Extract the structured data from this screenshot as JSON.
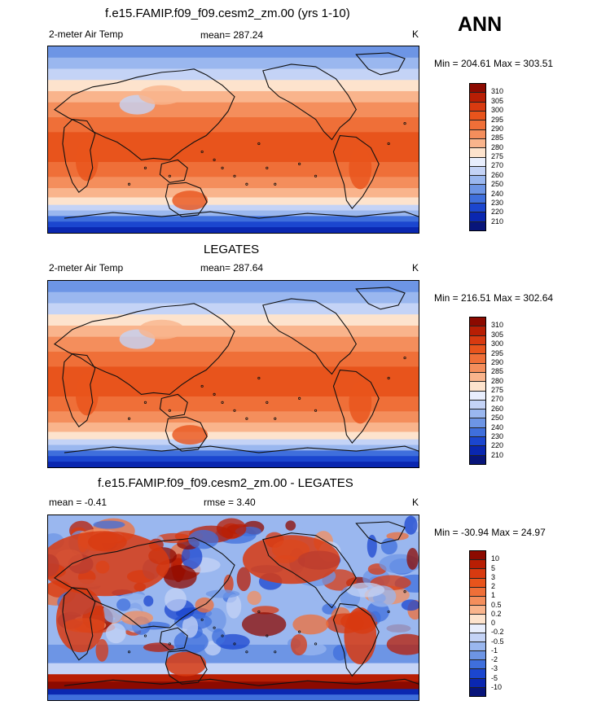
{
  "season": "ANN",
  "panels": [
    {
      "title": "f.e15.FAMIP.f09_f09.cesm2_zm.00 (yrs 1-10)",
      "left_label": "2-meter Air Temp",
      "center_label": "mean= 287.24",
      "units": "K",
      "minmax": "Min = 204.61 Max = 303.51",
      "colorbar_labels": [
        "310",
        "305",
        "300",
        "295",
        "290",
        "285",
        "280",
        "275",
        "270",
        "260",
        "250",
        "240",
        "230",
        "220",
        "210"
      ],
      "colorbar_colors": [
        "#8c0a00",
        "#b81e04",
        "#d83a10",
        "#e8541c",
        "#ef6f38",
        "#f48e5c",
        "#f9b48c",
        "#fde3cd",
        "#e8eefd",
        "#c4d3f6",
        "#9ab7ef",
        "#6d95e5",
        "#3f6fdc",
        "#1b46cf",
        "#0a27b0",
        "#08157a"
      ]
    },
    {
      "title": "LEGATES",
      "left_label": "2-meter Air Temp",
      "center_label": "mean= 287.64",
      "units": "K",
      "minmax": "Min = 216.51 Max = 302.64",
      "colorbar_labels": [
        "310",
        "305",
        "300",
        "295",
        "290",
        "285",
        "280",
        "275",
        "270",
        "260",
        "250",
        "240",
        "230",
        "220",
        "210"
      ],
      "colorbar_colors": [
        "#8c0a00",
        "#b81e04",
        "#d83a10",
        "#e8541c",
        "#ef6f38",
        "#f48e5c",
        "#f9b48c",
        "#fde3cd",
        "#e8eefd",
        "#c4d3f6",
        "#9ab7ef",
        "#6d95e5",
        "#3f6fdc",
        "#1b46cf",
        "#0a27b0",
        "#08157a"
      ]
    },
    {
      "title": "f.e15.FAMIP.f09_f09.cesm2_zm.00 - LEGATES",
      "left_label": "mean =  -0.41",
      "center_label": "rmse =   3.40",
      "units": "K",
      "minmax": "Min = -30.94 Max =  24.97",
      "colorbar_labels": [
        "10",
        "5",
        "3",
        "2",
        "1",
        "0.5",
        "0.2",
        "0",
        "-0.2",
        "-0.5",
        "-1",
        "-2",
        "-3",
        "-5",
        "-10"
      ],
      "colorbar_colors": [
        "#8c0a00",
        "#b81e04",
        "#d83a10",
        "#e8541c",
        "#ef6f38",
        "#f48e5c",
        "#f9b48c",
        "#fde3cd",
        "#e8eefd",
        "#c4d3f6",
        "#9ab7ef",
        "#6d95e5",
        "#3f6fdc",
        "#1b46cf",
        "#0a27b0",
        "#08157a"
      ]
    }
  ]
}
